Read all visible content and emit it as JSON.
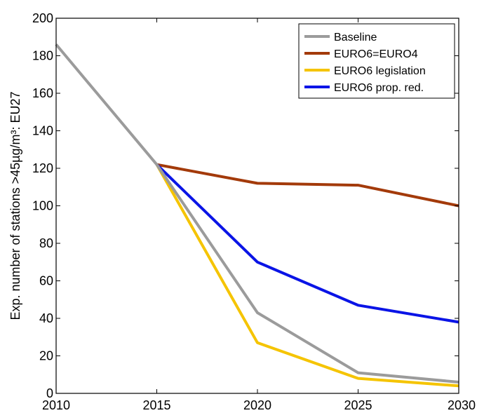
{
  "chart_data": {
    "type": "line",
    "title": "",
    "xlabel": "",
    "ylabel": "Exp. number of stations >45µg/m³: EU27",
    "xlim": [
      2010,
      2030
    ],
    "ylim": [
      0,
      200
    ],
    "x": [
      2010,
      2015,
      2020,
      2025,
      2030
    ],
    "xticks": [
      2010,
      2015,
      2020,
      2025,
      2030
    ],
    "yticks": [
      0,
      20,
      40,
      60,
      80,
      100,
      120,
      140,
      160,
      180,
      200
    ],
    "grid": false,
    "legend_position": "top-right",
    "series": [
      {
        "name": "Baseline",
        "color": "#9b9b9b",
        "x": [
          2010,
          2015,
          2020,
          2025,
          2030
        ],
        "values": [
          186,
          122,
          43,
          11,
          6
        ]
      },
      {
        "name": "EURO6=EURO4",
        "color": "#a33a0a",
        "x": [
          2015,
          2020,
          2025,
          2030
        ],
        "values": [
          122,
          112,
          111,
          100
        ]
      },
      {
        "name": "EURO6 legislation",
        "color": "#f5c400",
        "x": [
          2015,
          2020,
          2025,
          2030
        ],
        "values": [
          122,
          27,
          8,
          4
        ]
      },
      {
        "name": "EURO6 prop. red.",
        "color": "#0a14e6",
        "x": [
          2015,
          2020,
          2025,
          2030
        ],
        "values": [
          122,
          70,
          47,
          38
        ]
      }
    ]
  }
}
